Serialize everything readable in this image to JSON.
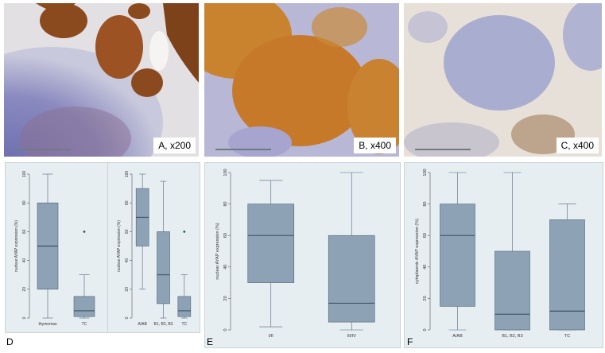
{
  "photos": [
    {
      "label": "A, x200"
    },
    {
      "label": "B, x400"
    },
    {
      "label": "C, x400"
    }
  ],
  "panel_letters": {
    "d": "D",
    "e": "E",
    "f": "F"
  },
  "colors": {
    "box_fill": "#8da2b4",
    "box_stroke": "#4f6678",
    "plot_bg": "#e6eef2"
  },
  "chart_data": [
    {
      "type": "box",
      "panel": "D-left",
      "ylabel": "nuclear AYAP expression (%)",
      "yticks": [
        "0",
        "20",
        "40",
        "60",
        "80",
        "100"
      ],
      "ylim": [
        0,
        100
      ],
      "categories": [
        "thymomas",
        "TC"
      ],
      "boxes": [
        {
          "min": 0,
          "q1": 20,
          "median": 50,
          "q3": 80,
          "max": 100,
          "outliers": []
        },
        {
          "min": 0,
          "q1": 1,
          "median": 5,
          "q3": 15,
          "max": 30,
          "outliers": [
            60
          ]
        }
      ]
    },
    {
      "type": "box",
      "panel": "D-right",
      "ylabel": "nuclear AYAP expression (%)",
      "yticks": [
        "0",
        "20",
        "40",
        "60",
        "80",
        "100"
      ],
      "ylim": [
        0,
        100
      ],
      "categories": [
        "A/AB",
        "B1, B2, B3",
        "TC"
      ],
      "boxes": [
        {
          "min": 20,
          "q1": 50,
          "median": 70,
          "q3": 90,
          "max": 100,
          "outliers": []
        },
        {
          "min": 0,
          "q1": 10,
          "median": 30,
          "q3": 60,
          "max": 95,
          "outliers": []
        },
        {
          "min": 0,
          "q1": 1,
          "median": 5,
          "q3": 15,
          "max": 30,
          "outliers": [
            60
          ]
        }
      ]
    },
    {
      "type": "box",
      "panel": "E",
      "ylabel": "nuclear AYAP expression (%)",
      "yticks": [
        "0",
        "20",
        "40",
        "60",
        "80",
        "100"
      ],
      "ylim": [
        0,
        100
      ],
      "categories": [
        "I/II",
        "III/IV"
      ],
      "boxes": [
        {
          "min": 2,
          "q1": 30,
          "median": 60,
          "q3": 80,
          "max": 95,
          "outliers": []
        },
        {
          "min": 0,
          "q1": 5,
          "median": 17,
          "q3": 60,
          "max": 100,
          "outliers": []
        }
      ]
    },
    {
      "type": "box",
      "panel": "F",
      "ylabel": "cytoplasmic AYAP expression (%)",
      "yticks": [
        "0",
        "20",
        "40",
        "60",
        "80",
        "100"
      ],
      "ylim": [
        0,
        100
      ],
      "categories": [
        "A/AB",
        "B1, B2, B3",
        "TC"
      ],
      "boxes": [
        {
          "min": 0,
          "q1": 15,
          "median": 60,
          "q3": 80,
          "max": 100,
          "outliers": []
        },
        {
          "min": 0,
          "q1": 0,
          "median": 10,
          "q3": 50,
          "max": 100,
          "outliers": []
        },
        {
          "min": 0,
          "q1": 0,
          "median": 12,
          "q3": 70,
          "max": 80,
          "outliers": []
        }
      ]
    }
  ]
}
